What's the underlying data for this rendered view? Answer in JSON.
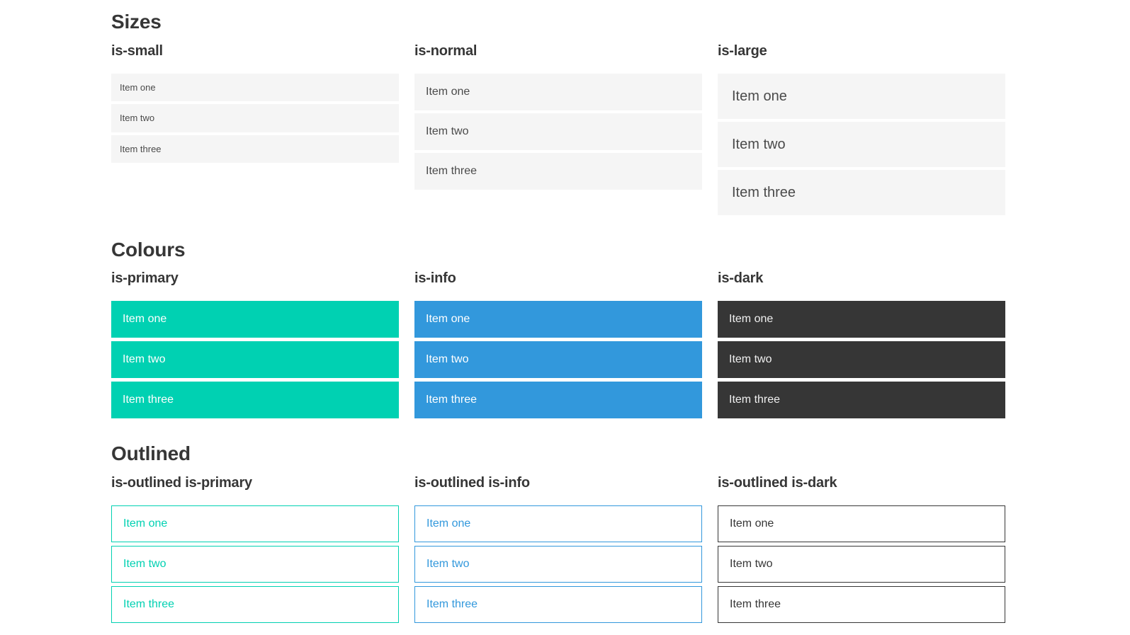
{
  "colors": {
    "primary": "#00d1b2",
    "info": "#3298dc",
    "dark": "#363636",
    "item_background_light": "#f5f5f5",
    "heading_text": "#363636",
    "item_text": "#4a4a4a"
  },
  "sections": [
    {
      "title": "Sizes",
      "groups": [
        {
          "label": "is-small",
          "items": [
            "Item one",
            "Item two",
            "Item three"
          ]
        },
        {
          "label": "is-normal",
          "items": [
            "Item one",
            "Item two",
            "Item three"
          ]
        },
        {
          "label": "is-large",
          "items": [
            "Item one",
            "Item two",
            "Item three"
          ]
        }
      ]
    },
    {
      "title": "Colours",
      "groups": [
        {
          "label": "is-primary",
          "items": [
            "Item one",
            "Item two",
            "Item three"
          ]
        },
        {
          "label": "is-info",
          "items": [
            "Item one",
            "Item two",
            "Item three"
          ]
        },
        {
          "label": "is-dark",
          "items": [
            "Item one",
            "Item two",
            "Item three"
          ]
        }
      ]
    },
    {
      "title": "Outlined",
      "groups": [
        {
          "label": "is-outlined is-primary",
          "items": [
            "Item one",
            "Item two",
            "Item three"
          ]
        },
        {
          "label": "is-outlined is-info",
          "items": [
            "Item one",
            "Item two",
            "Item three"
          ]
        },
        {
          "label": "is-outlined is-dark",
          "items": [
            "Item one",
            "Item two",
            "Item three"
          ]
        }
      ]
    }
  ]
}
